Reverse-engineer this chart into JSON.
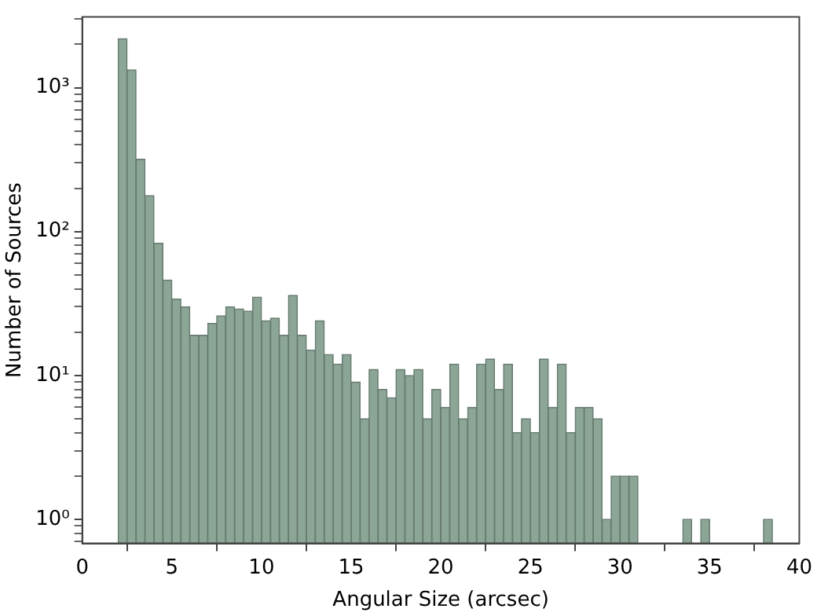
{
  "chart_data": {
    "type": "histogram",
    "xlabel": "Angular Size (arcsec)",
    "ylabel": "Number of Sources",
    "color": "#8ba596",
    "log": "y",
    "grid": false,
    "legend": false,
    "bins": [
      2,
      2.5,
      3,
      3.5,
      4,
      4.5,
      5,
      5.5,
      6,
      6.5,
      7,
      7.5,
      8,
      8.5,
      9,
      9.5,
      10,
      10.5,
      11,
      11.5,
      12,
      12.5,
      13,
      13.5,
      14,
      14.5,
      15,
      15.5,
      16,
      16.5,
      17,
      17.5,
      18,
      18.5,
      19,
      19.5,
      20,
      20.5,
      21,
      21.5,
      22,
      22.5,
      23,
      23.5,
      24,
      24.5,
      25,
      25.5,
      26,
      26.5,
      27,
      27.5,
      28,
      28.5,
      29,
      29.5,
      30,
      30.5,
      31,
      31.5,
      32,
      32.5,
      33,
      33.5,
      34,
      34.5,
      35,
      35.5,
      36,
      36.5,
      37,
      37.5,
      38,
      38.5
    ],
    "values": [
      2190,
      1330,
      318,
      178,
      83,
      46,
      34,
      30,
      19,
      19,
      23,
      26,
      30,
      29,
      28,
      35,
      24,
      25,
      19,
      36,
      19,
      15,
      24,
      14,
      12,
      14,
      9,
      5,
      11,
      8,
      7,
      11,
      10,
      11,
      5,
      8,
      6,
      12,
      5,
      6,
      12,
      13,
      8,
      12,
      4,
      5,
      4,
      13,
      6,
      12,
      4,
      6,
      6,
      5,
      1,
      2,
      2,
      2,
      null,
      null,
      null,
      null,
      null,
      1,
      null,
      1,
      null,
      null,
      null,
      null,
      null,
      null,
      1
    ],
    "xlim": [
      0,
      40
    ],
    "xticks": [
      0,
      5,
      10,
      15,
      20,
      25,
      30,
      35,
      40
    ],
    "ylim": [
      0.68,
      3100
    ],
    "yticks": [
      {
        "value": 0.7,
        "label": null
      },
      {
        "value": 0.8,
        "label": null
      },
      {
        "value": 0.9,
        "label": null
      },
      {
        "value": 1,
        "label": "10⁰"
      },
      {
        "value": 2,
        "label": null
      },
      {
        "value": 3,
        "label": null
      },
      {
        "value": 4,
        "label": null
      },
      {
        "value": 5,
        "label": null
      },
      {
        "value": 6,
        "label": null
      },
      {
        "value": 7,
        "label": null
      },
      {
        "value": 8,
        "label": null
      },
      {
        "value": 9,
        "label": null
      },
      {
        "value": 10,
        "label": "10¹"
      },
      {
        "value": 20,
        "label": null
      },
      {
        "value": 30,
        "label": null
      },
      {
        "value": 40,
        "label": null
      },
      {
        "value": 50,
        "label": null
      },
      {
        "value": 60,
        "label": null
      },
      {
        "value": 70,
        "label": null
      },
      {
        "value": 80,
        "label": null
      },
      {
        "value": 90,
        "label": null
      },
      {
        "value": 100,
        "label": "10²"
      },
      {
        "value": 200,
        "label": null
      },
      {
        "value": 300,
        "label": null
      },
      {
        "value": 400,
        "label": null
      },
      {
        "value": 500,
        "label": null
      },
      {
        "value": 600,
        "label": null
      },
      {
        "value": 700,
        "label": null
      },
      {
        "value": 800,
        "label": null
      },
      {
        "value": 900,
        "label": null
      },
      {
        "value": 1000,
        "label": "10³"
      },
      {
        "value": 2000,
        "label": null
      },
      {
        "value": 3000,
        "label": null
      }
    ]
  }
}
